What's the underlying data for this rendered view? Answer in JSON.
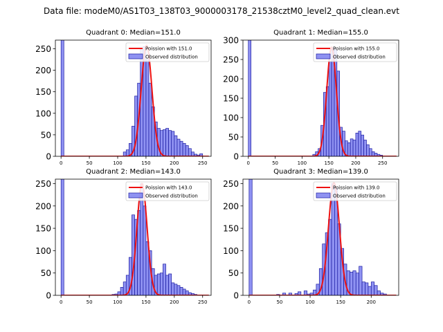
{
  "figure": {
    "title": "Data file: modeM0/AS1T03_138T03_9000003178_21538cztM0_level2_quad_clean.evt"
  },
  "colors": {
    "bar_fill": "#7b7ff0",
    "bar_edge": "#1a1aa0",
    "fit_line": "#ee1111"
  },
  "chart_data": [
    {
      "type": "bar",
      "title": "Quadrant 0: Median=151.0",
      "xlim": [
        -10,
        265
      ],
      "ylim": [
        0,
        270
      ],
      "xticks": [
        0,
        50,
        100,
        150,
        200,
        250
      ],
      "yticks": [
        0,
        50,
        100,
        150,
        200,
        250
      ],
      "bin_width": 5,
      "bins": [
        {
          "x": 0,
          "y": 270
        },
        {
          "x": 110,
          "y": 10
        },
        {
          "x": 115,
          "y": 15
        },
        {
          "x": 120,
          "y": 30
        },
        {
          "x": 125,
          "y": 70
        },
        {
          "x": 130,
          "y": 140
        },
        {
          "x": 135,
          "y": 170
        },
        {
          "x": 140,
          "y": 250
        },
        {
          "x": 145,
          "y": 255
        },
        {
          "x": 150,
          "y": 225
        },
        {
          "x": 155,
          "y": 170
        },
        {
          "x": 160,
          "y": 115
        },
        {
          "x": 165,
          "y": 80
        },
        {
          "x": 170,
          "y": 65
        },
        {
          "x": 175,
          "y": 60
        },
        {
          "x": 180,
          "y": 62
        },
        {
          "x": 185,
          "y": 65
        },
        {
          "x": 190,
          "y": 60
        },
        {
          "x": 195,
          "y": 58
        },
        {
          "x": 200,
          "y": 48
        },
        {
          "x": 205,
          "y": 40
        },
        {
          "x": 210,
          "y": 35
        },
        {
          "x": 215,
          "y": 30
        },
        {
          "x": 220,
          "y": 25
        },
        {
          "x": 225,
          "y": 18
        },
        {
          "x": 230,
          "y": 10
        },
        {
          "x": 235,
          "y": 5
        },
        {
          "x": 240,
          "y": 3
        },
        {
          "x": 245,
          "y": 6
        }
      ],
      "fit": {
        "mean": 151,
        "sigma": 9.5,
        "peak": 258
      },
      "legend": [
        "Poission with 151.0",
        "Observed distribution"
      ],
      "legend_position": "top-right"
    },
    {
      "type": "bar",
      "title": "Quadrant 1: Median=155.0",
      "xlim": [
        -10,
        280
      ],
      "ylim": [
        0,
        300
      ],
      "xticks": [
        0,
        50,
        100,
        150,
        200,
        250
      ],
      "yticks": [
        0,
        50,
        100,
        150,
        200,
        250,
        300
      ],
      "bin_width": 5,
      "bins": [
        {
          "x": 0,
          "y": 300
        },
        {
          "x": 120,
          "y": 5
        },
        {
          "x": 125,
          "y": 12
        },
        {
          "x": 130,
          "y": 20
        },
        {
          "x": 135,
          "y": 80
        },
        {
          "x": 140,
          "y": 165
        },
        {
          "x": 145,
          "y": 180
        },
        {
          "x": 150,
          "y": 245
        },
        {
          "x": 155,
          "y": 280
        },
        {
          "x": 160,
          "y": 275
        },
        {
          "x": 165,
          "y": 220
        },
        {
          "x": 170,
          "y": 75
        },
        {
          "x": 175,
          "y": 65
        },
        {
          "x": 180,
          "y": 40
        },
        {
          "x": 185,
          "y": 35
        },
        {
          "x": 190,
          "y": 45
        },
        {
          "x": 195,
          "y": 42
        },
        {
          "x": 200,
          "y": 60
        },
        {
          "x": 205,
          "y": 65
        },
        {
          "x": 210,
          "y": 55
        },
        {
          "x": 215,
          "y": 42
        },
        {
          "x": 220,
          "y": 30
        },
        {
          "x": 225,
          "y": 20
        },
        {
          "x": 230,
          "y": 12
        },
        {
          "x": 235,
          "y": 8
        },
        {
          "x": 240,
          "y": 5
        },
        {
          "x": 245,
          "y": 3
        }
      ],
      "fit": {
        "mean": 155,
        "sigma": 9.0,
        "peak": 282
      },
      "legend": [
        "Poission with 155.0",
        "Observed distribution"
      ],
      "legend_position": "top-right"
    },
    {
      "type": "bar",
      "title": "Quadrant 2: Median=143.0",
      "xlim": [
        -10,
        265
      ],
      "ylim": [
        0,
        260
      ],
      "xticks": [
        0,
        50,
        100,
        150,
        200,
        250
      ],
      "yticks": [
        0,
        50,
        100,
        150,
        200,
        250
      ],
      "bin_width": 5,
      "bins": [
        {
          "x": 0,
          "y": 260
        },
        {
          "x": 90,
          "y": 2
        },
        {
          "x": 95,
          "y": 3
        },
        {
          "x": 100,
          "y": 8
        },
        {
          "x": 105,
          "y": 18
        },
        {
          "x": 110,
          "y": 30
        },
        {
          "x": 115,
          "y": 45
        },
        {
          "x": 120,
          "y": 85
        },
        {
          "x": 125,
          "y": 180
        },
        {
          "x": 130,
          "y": 170
        },
        {
          "x": 135,
          "y": 190
        },
        {
          "x": 140,
          "y": 250
        },
        {
          "x": 145,
          "y": 200
        },
        {
          "x": 150,
          "y": 120
        },
        {
          "x": 155,
          "y": 100
        },
        {
          "x": 160,
          "y": 60
        },
        {
          "x": 165,
          "y": 45
        },
        {
          "x": 170,
          "y": 48
        },
        {
          "x": 175,
          "y": 50
        },
        {
          "x": 180,
          "y": 70
        },
        {
          "x": 185,
          "y": 45
        },
        {
          "x": 190,
          "y": 48
        },
        {
          "x": 195,
          "y": 28
        },
        {
          "x": 200,
          "y": 25
        },
        {
          "x": 205,
          "y": 22
        },
        {
          "x": 210,
          "y": 18
        },
        {
          "x": 215,
          "y": 14
        },
        {
          "x": 220,
          "y": 10
        },
        {
          "x": 225,
          "y": 6
        },
        {
          "x": 230,
          "y": 4
        },
        {
          "x": 235,
          "y": 2
        }
      ],
      "fit": {
        "mean": 143,
        "sigma": 9.0,
        "peak": 250
      },
      "legend": [
        "Poission with 143.0",
        "Observed distribution"
      ],
      "legend_position": "top-right"
    },
    {
      "type": "bar",
      "title": "Quadrant 3: Median=139.0",
      "xlim": [
        -10,
        245
      ],
      "ylim": [
        0,
        260
      ],
      "xticks": [
        0,
        50,
        100,
        150,
        200
      ],
      "yticks": [
        0,
        50,
        100,
        150,
        200,
        250
      ],
      "bin_width": 5,
      "bins": [
        {
          "x": 0,
          "y": 260
        },
        {
          "x": 45,
          "y": 2
        },
        {
          "x": 55,
          "y": 5
        },
        {
          "x": 65,
          "y": 5
        },
        {
          "x": 75,
          "y": 4
        },
        {
          "x": 80,
          "y": 8
        },
        {
          "x": 90,
          "y": 10
        },
        {
          "x": 95,
          "y": 3
        },
        {
          "x": 100,
          "y": 5
        },
        {
          "x": 105,
          "y": 12
        },
        {
          "x": 110,
          "y": 25
        },
        {
          "x": 115,
          "y": 60
        },
        {
          "x": 120,
          "y": 115
        },
        {
          "x": 125,
          "y": 140
        },
        {
          "x": 130,
          "y": 170
        },
        {
          "x": 135,
          "y": 250
        },
        {
          "x": 140,
          "y": 240
        },
        {
          "x": 145,
          "y": 160
        },
        {
          "x": 150,
          "y": 105
        },
        {
          "x": 155,
          "y": 70
        },
        {
          "x": 160,
          "y": 55
        },
        {
          "x": 165,
          "y": 52
        },
        {
          "x": 170,
          "y": 55
        },
        {
          "x": 175,
          "y": 50
        },
        {
          "x": 180,
          "y": 65
        },
        {
          "x": 185,
          "y": 30
        },
        {
          "x": 190,
          "y": 28
        },
        {
          "x": 195,
          "y": 20
        },
        {
          "x": 200,
          "y": 30
        },
        {
          "x": 205,
          "y": 22
        },
        {
          "x": 210,
          "y": 10
        },
        {
          "x": 215,
          "y": 5
        },
        {
          "x": 220,
          "y": 3
        }
      ],
      "fit": {
        "mean": 139,
        "sigma": 9.0,
        "peak": 252
      },
      "legend": [
        "Poission with 139.0",
        "Observed distribution"
      ],
      "legend_position": "top-right"
    }
  ]
}
